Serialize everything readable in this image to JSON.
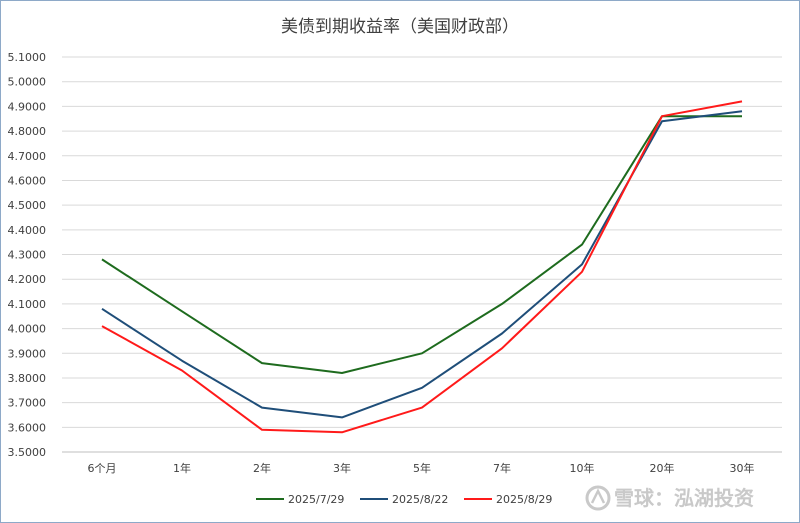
{
  "chart_data": {
    "type": "line",
    "title": "美债到期收益率（美国财政部）",
    "xlabel": "",
    "ylabel": "",
    "categories": [
      "6个月",
      "1年",
      "2年",
      "3年",
      "5年",
      "7年",
      "10年",
      "20年",
      "30年"
    ],
    "ylim": [
      3.5,
      5.1
    ],
    "yticks": [
      "3.5000",
      "3.6000",
      "3.7000",
      "3.8000",
      "3.9000",
      "4.0000",
      "4.1000",
      "4.2000",
      "4.3000",
      "4.4000",
      "4.5000",
      "4.6000",
      "4.7000",
      "4.8000",
      "4.9000",
      "5.0000",
      "5.1000"
    ],
    "grid": true,
    "legend_position": "bottom",
    "series": [
      {
        "name": "2025/7/29",
        "color": "#1e6b1e",
        "values": [
          4.28,
          4.07,
          3.86,
          3.82,
          3.9,
          4.1,
          4.34,
          4.86,
          4.86
        ]
      },
      {
        "name": "2025/8/22",
        "color": "#1f4e79",
        "values": [
          4.08,
          3.87,
          3.68,
          3.64,
          3.76,
          3.98,
          4.26,
          4.84,
          4.88
        ]
      },
      {
        "name": "2025/8/29",
        "color": "#ff1a1a",
        "values": [
          4.01,
          3.83,
          3.59,
          3.58,
          3.68,
          3.92,
          4.23,
          4.86,
          4.92
        ]
      }
    ]
  },
  "watermark": {
    "text": "雪球：泓湖投资",
    "icon": "snowball-logo-icon"
  }
}
